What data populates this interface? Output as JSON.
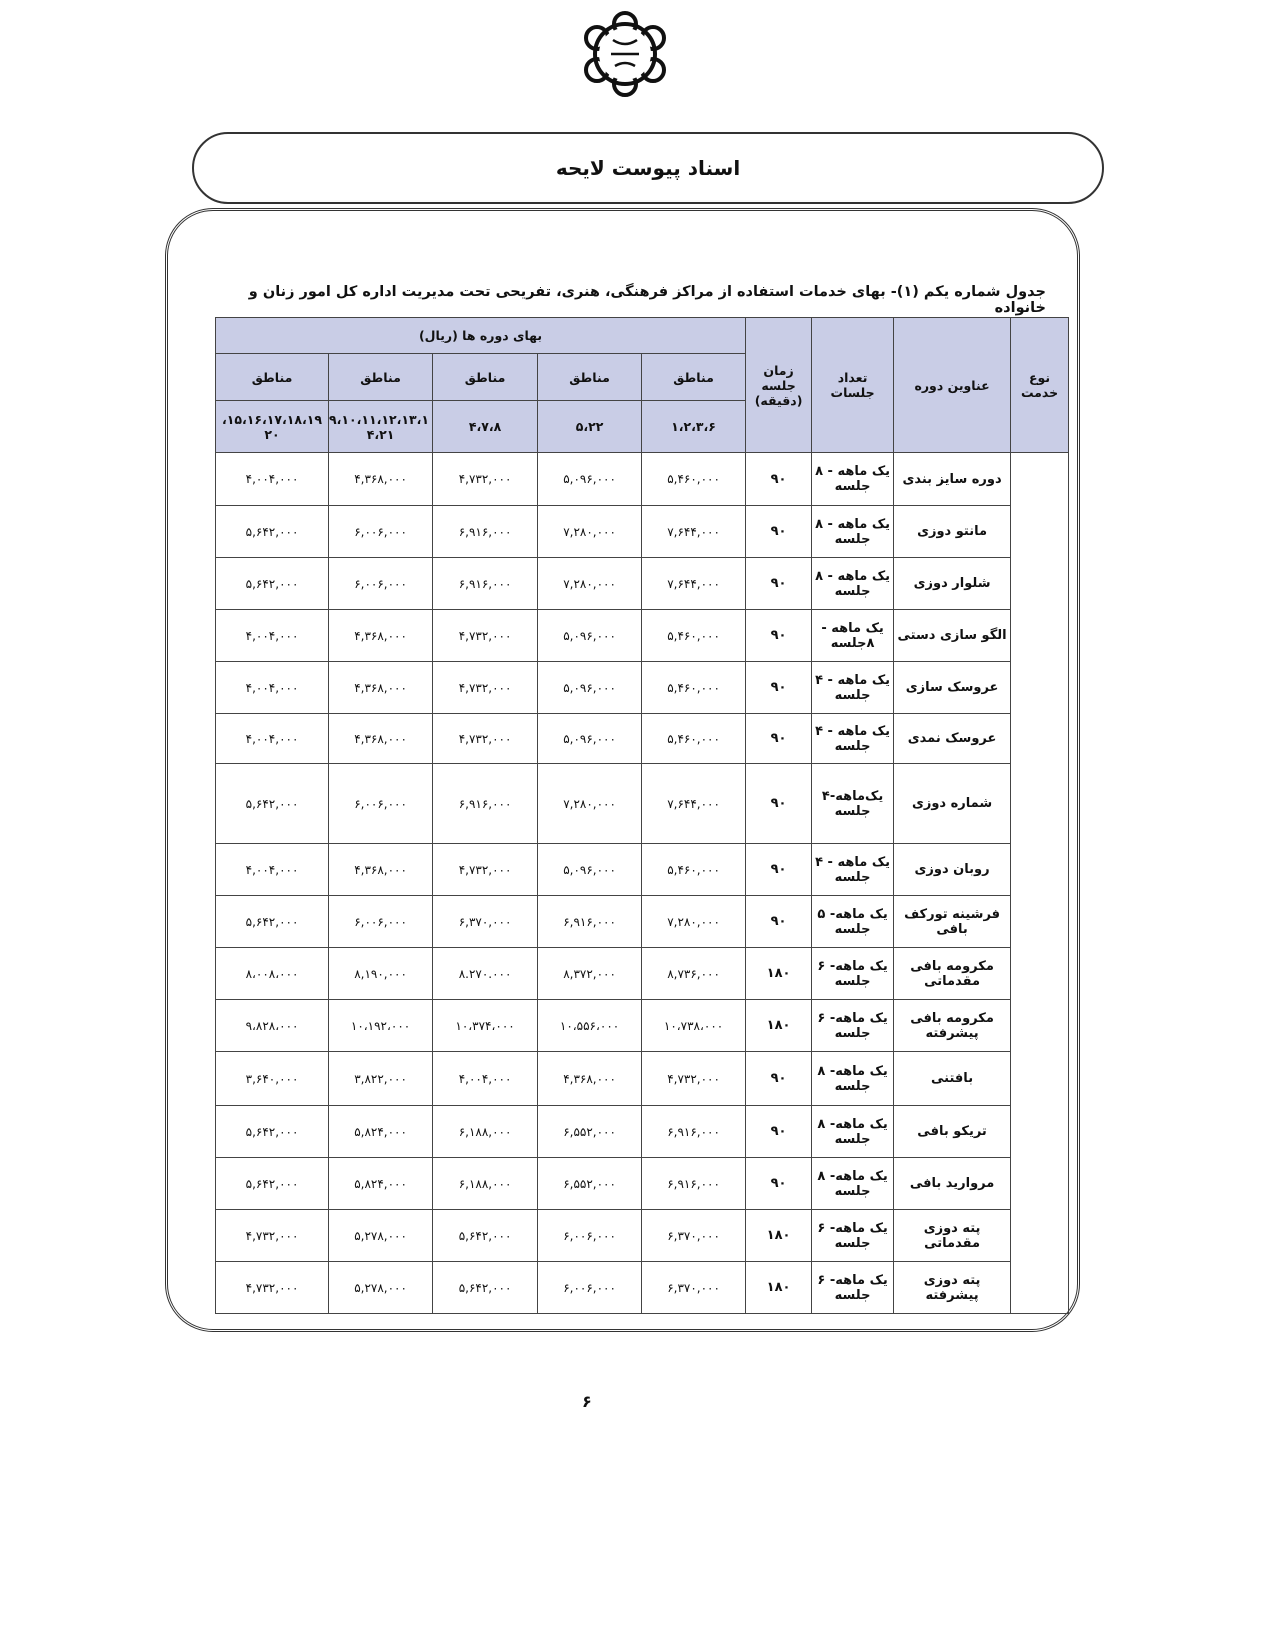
{
  "header": {
    "title": "اسناد پیوست لایحه"
  },
  "caption": "جدول شماره یکم (۱)- بهای خدمات استفاده از مراکز فرهنگی، هنری، تفریحی تحت مدیریت اداره کل امور زنان و خانواده",
  "table": {
    "col_service_type": "نوع خدمت",
    "col_course_title": "عناوین دوره",
    "col_sessions": "تعداد جلسات",
    "col_duration": "زمان جلسه (دقیقه)",
    "col_price_group": "بهای دوره ها (ریال)",
    "zone_label": "مناطق",
    "zones": [
      "۱،۲،۳،۶",
      "۵،۲۲",
      "۴،۷،۸",
      "۹،۱۰،۱۱،۱۲،۱۳،۱ ۴،۲۱",
      "۱۵،۱۶،۱۷،۱۸،۱۹، ۲۰"
    ],
    "rows": [
      {
        "course": "دوره سایز بندی",
        "sessions": "یک ماهه - ۸ جلسه",
        "duration": "۹۰",
        "prices": [
          "۵,۴۶۰,۰۰۰",
          "۵,۰۹۶,۰۰۰",
          "۴,۷۳۲,۰۰۰",
          "۴,۳۶۸,۰۰۰",
          "۴,۰۰۴,۰۰۰"
        ]
      },
      {
        "course": "مانتو دوزی",
        "sessions": "یک ماهه - ۸ جلسه",
        "duration": "۹۰",
        "prices": [
          "۷,۶۴۴,۰۰۰",
          "۷,۲۸۰,۰۰۰",
          "۶,۹۱۶,۰۰۰",
          "۶,۰۰۶,۰۰۰",
          "۵,۶۴۲,۰۰۰"
        ]
      },
      {
        "course": "شلوار دوزی",
        "sessions": "یک ماهه - ۸ جلسه",
        "duration": "۹۰",
        "prices": [
          "۷,۶۴۴,۰۰۰",
          "۷,۲۸۰,۰۰۰",
          "۶,۹۱۶,۰۰۰",
          "۶,۰۰۶,۰۰۰",
          "۵,۶۴۲,۰۰۰"
        ]
      },
      {
        "course": "الگو سازی دستی",
        "sessions": "یک ماهه - ۸جلسه",
        "duration": "۹۰",
        "prices": [
          "۵,۴۶۰,۰۰۰",
          "۵,۰۹۶,۰۰۰",
          "۴,۷۳۲,۰۰۰",
          "۴,۳۶۸,۰۰۰",
          "۴,۰۰۴,۰۰۰"
        ]
      },
      {
        "course": "عروسک سازی",
        "sessions": "یک ماهه - ۴ جلسه",
        "duration": "۹۰",
        "prices": [
          "۵,۴۶۰,۰۰۰",
          "۵,۰۹۶,۰۰۰",
          "۴,۷۳۲,۰۰۰",
          "۴,۳۶۸,۰۰۰",
          "۴,۰۰۴,۰۰۰"
        ]
      },
      {
        "course": "عروسک نمدی",
        "sessions": "یک ماهه - ۴ جلسه",
        "duration": "۹۰",
        "prices": [
          "۵,۴۶۰,۰۰۰",
          "۵,۰۹۶,۰۰۰",
          "۴,۷۳۲,۰۰۰",
          "۴,۳۶۸,۰۰۰",
          "۴,۰۰۴,۰۰۰"
        ]
      },
      {
        "course": "شماره دوزی",
        "sessions": "یک‌ماهه-۴ جلسه",
        "duration": "۹۰",
        "prices": [
          "۷,۶۴۴,۰۰۰",
          "۷,۲۸۰,۰۰۰",
          "۶,۹۱۶,۰۰۰",
          "۶,۰۰۶,۰۰۰",
          "۵,۶۴۲,۰۰۰"
        ]
      },
      {
        "course": "روبان دوزی",
        "sessions": "یک ماهه - ۴ جلسه",
        "duration": "۹۰",
        "prices": [
          "۵,۴۶۰,۰۰۰",
          "۵,۰۹۶,۰۰۰",
          "۴,۷۳۲,۰۰۰",
          "۴,۳۶۸,۰۰۰",
          "۴,۰۰۴,۰۰۰"
        ]
      },
      {
        "course": "فرشینه تورکف بافی",
        "sessions": "یک ماهه- ۵ جلسه",
        "duration": "۹۰",
        "prices": [
          "۷,۲۸۰,۰۰۰",
          "۶,۹۱۶,۰۰۰",
          "۶,۳۷۰,۰۰۰",
          "۶,۰۰۶,۰۰۰",
          "۵,۶۴۲,۰۰۰"
        ]
      },
      {
        "course": "مکرومه بافی مقدماتی",
        "sessions": "یک ماهه- ۶ جلسه",
        "duration": "۱۸۰",
        "prices": [
          "۸,۷۳۶,۰۰۰",
          "۸,۳۷۲,۰۰۰",
          "۸.۲۷۰.۰۰۰",
          "۸,۱۹۰,۰۰۰",
          "۸،۰۰۸،۰۰۰"
        ]
      },
      {
        "course": "مکرومه بافی پیشرفته",
        "sessions": "یک ماهه- ۶ جلسه",
        "duration": "۱۸۰",
        "prices": [
          "۱۰،۷۳۸،۰۰۰",
          "۱۰،۵۵۶،۰۰۰",
          "۱۰،۳۷۴،۰۰۰",
          "۱۰،۱۹۲،۰۰۰",
          "۹،۸۲۸،۰۰۰"
        ]
      },
      {
        "course": "بافتنی",
        "sessions": "یک ماهه- ۸ جلسه",
        "duration": "۹۰",
        "prices": [
          "۴,۷۳۲,۰۰۰",
          "۴,۳۶۸,۰۰۰",
          "۴,۰۰۴,۰۰۰",
          "۳,۸۲۲,۰۰۰",
          "۳,۶۴۰,۰۰۰"
        ]
      },
      {
        "course": "تریکو بافی",
        "sessions": "یک ماهه- ۸ جلسه",
        "duration": "۹۰",
        "prices": [
          "۶,۹۱۶,۰۰۰",
          "۶,۵۵۲,۰۰۰",
          "۶,۱۸۸,۰۰۰",
          "۵,۸۲۴,۰۰۰",
          "۵,۶۴۲,۰۰۰"
        ]
      },
      {
        "course": "مروارید بافی",
        "sessions": "یک ماهه- ۸ جلسه",
        "duration": "۹۰",
        "prices": [
          "۶,۹۱۶,۰۰۰",
          "۶,۵۵۲,۰۰۰",
          "۶,۱۸۸,۰۰۰",
          "۵,۸۲۴,۰۰۰",
          "۵,۶۴۲,۰۰۰"
        ]
      },
      {
        "course": "پته دوزی مقدماتی",
        "sessions": "یک ماهه- ۶ جلسه",
        "duration": "۱۸۰",
        "prices": [
          "۶,۳۷۰,۰۰۰",
          "۶,۰۰۶,۰۰۰",
          "۵,۶۴۲,۰۰۰",
          "۵,۲۷۸,۰۰۰",
          "۴,۷۳۲,۰۰۰"
        ]
      },
      {
        "course": "پته دوزی پیشرفته",
        "sessions": "یک ماهه- ۶ جلسه",
        "duration": "۱۸۰",
        "prices": [
          "۶,۳۷۰,۰۰۰",
          "۶,۰۰۶,۰۰۰",
          "۵,۶۴۲,۰۰۰",
          "۵,۲۷۸,۰۰۰",
          "۴,۷۳۲,۰۰۰"
        ]
      }
    ]
  },
  "page_number": "۶",
  "colors": {
    "header_bg": "#c9cde6",
    "border": "#444444"
  }
}
